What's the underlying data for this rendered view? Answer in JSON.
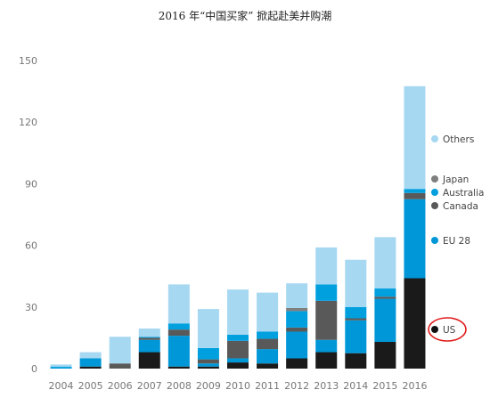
{
  "chart_data": {
    "type": "bar",
    "stacked": true,
    "title": "2016 年“中国买家” 掀起赴美并购潮",
    "xlabel": "",
    "ylabel": "",
    "ylim": [
      0,
      150
    ],
    "yticks": [
      0,
      30,
      60,
      90,
      120,
      150
    ],
    "grid": false,
    "legend_position": "right",
    "categories": [
      "2004",
      "2005",
      "2006",
      "2007",
      "2008",
      "2009",
      "2010",
      "2011",
      "2012",
      "2013",
      "2014",
      "2015",
      "2016"
    ],
    "series": [
      {
        "name": "US",
        "color": "#1a1a1a",
        "values": [
          0,
          1,
          0,
          8,
          1,
          1,
          3,
          2.5,
          5,
          8,
          7.5,
          13,
          44
        ]
      },
      {
        "name": "EU 28",
        "color": "#0097d8",
        "values": [
          0.5,
          4,
          0,
          6,
          15,
          1.5,
          2,
          7,
          13,
          6,
          16,
          21,
          38.5
        ]
      },
      {
        "name": "Canada",
        "color": "#595959",
        "values": [
          0,
          0,
          2.5,
          1,
          3,
          2,
          8.5,
          5,
          2,
          19,
          1,
          1,
          3
        ]
      },
      {
        "name": "Australia",
        "color": "#00a0df",
        "values": [
          0.5,
          0,
          0,
          0.5,
          3,
          5.5,
          3,
          3.5,
          8,
          8,
          5.5,
          4,
          2
        ]
      },
      {
        "name": "Japan",
        "color": "#7f7f7f",
        "values": [
          0,
          0,
          0,
          0,
          0,
          0,
          0,
          0,
          1.5,
          0,
          0,
          0,
          0
        ]
      },
      {
        "name": "Others",
        "color": "#a6d8f2",
        "values": [
          1,
          3,
          13,
          4,
          19,
          19,
          22,
          19,
          12,
          18,
          23,
          25,
          50
        ]
      }
    ],
    "legend_order": [
      "Others",
      "Japan",
      "Australia",
      "Canada",
      "EU 28",
      "US"
    ],
    "annotation": {
      "series": "US",
      "style": "red-ellipse",
      "color": "#e11d1d"
    }
  }
}
